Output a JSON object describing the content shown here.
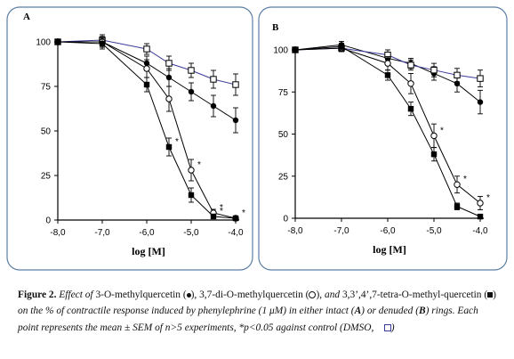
{
  "chart_data": [
    {
      "type": "line",
      "panel": "A",
      "xlabel": "log [M]",
      "ylabel": "",
      "xlim": [
        -8.0,
        -4.0
      ],
      "ylim": [
        0,
        100
      ],
      "xticks": [
        "-8,0",
        "-7,0",
        "-6,0",
        "-5,0",
        "-4,0"
      ],
      "yticks": [
        "0",
        "25",
        "50",
        "75",
        "100"
      ],
      "series": [
        {
          "marker": "filled-circle",
          "line_color": "#000000",
          "x": [
            -8.0,
            -7.0,
            -6.0,
            -5.5,
            -5.0,
            -4.5,
            -4.0
          ],
          "y": [
            100,
            100,
            88,
            80,
            72,
            64,
            56
          ],
          "err": [
            0,
            3,
            4,
            5,
            5,
            6,
            7
          ],
          "sig": []
        },
        {
          "marker": "open-square",
          "line_color": "#3a3a9a",
          "x": [
            -8.0,
            -7.0,
            -6.0,
            -5.5,
            -5.0,
            -4.5,
            -4.0
          ],
          "y": [
            100,
            101,
            96,
            88,
            84,
            79,
            76
          ],
          "err": [
            0,
            3,
            3,
            4,
            4,
            5,
            6
          ],
          "sig": []
        },
        {
          "marker": "open-circle",
          "line_color": "#000000",
          "x": [
            -8.0,
            -7.0,
            -6.0,
            -5.5,
            -5.0,
            -4.5,
            -4.0
          ],
          "y": [
            100,
            100,
            85,
            68,
            28,
            4,
            1
          ],
          "err": [
            0,
            3,
            5,
            7,
            6,
            2,
            1
          ],
          "sig": [
            false,
            false,
            false,
            false,
            true,
            true,
            true
          ]
        },
        {
          "marker": "filled-square",
          "line_color": "#000000",
          "x": [
            -8.0,
            -7.0,
            -6.0,
            -5.5,
            -5.0,
            -4.5,
            -4.0
          ],
          "y": [
            100,
            99,
            76,
            41,
            14,
            2,
            1
          ],
          "err": [
            0,
            3,
            4,
            5,
            4,
            1,
            1
          ],
          "sig": [
            false,
            false,
            false,
            true,
            false,
            true,
            false
          ]
        }
      ]
    },
    {
      "type": "line",
      "panel": "B",
      "xlabel": "log [M]",
      "ylabel": "",
      "xlim": [
        -8.0,
        -4.0
      ],
      "ylim": [
        0,
        100
      ],
      "xticks": [
        "-8,0",
        "-7,0",
        "-6,0",
        "-5,0",
        "-4,0"
      ],
      "yticks": [
        "0",
        "25",
        "50",
        "75",
        "100"
      ],
      "series": [
        {
          "marker": "filled-circle",
          "line_color": "#000000",
          "x": [
            -8.0,
            -7.0,
            -6.0,
            -5.5,
            -5.0,
            -4.5,
            -4.0
          ],
          "y": [
            100,
            103,
            95,
            92,
            86,
            80,
            69
          ],
          "err": [
            0,
            2,
            3,
            3,
            4,
            5,
            7
          ],
          "sig": []
        },
        {
          "marker": "open-square",
          "line_color": "#3a3a9a",
          "x": [
            -8.0,
            -7.0,
            -6.0,
            -5.5,
            -5.0,
            -4.5,
            -4.0
          ],
          "y": [
            100,
            101,
            97,
            91,
            88,
            85,
            83
          ],
          "err": [
            0,
            2,
            3,
            3,
            4,
            4,
            5
          ],
          "sig": []
        },
        {
          "marker": "open-circle",
          "line_color": "#000000",
          "x": [
            -8.0,
            -7.0,
            -6.0,
            -5.5,
            -5.0,
            -4.5,
            -4.0
          ],
          "y": [
            100,
            101,
            92,
            80,
            49,
            20,
            9
          ],
          "err": [
            0,
            2,
            4,
            6,
            7,
            5,
            4
          ],
          "sig": [
            false,
            false,
            false,
            false,
            true,
            true,
            true
          ]
        },
        {
          "marker": "filled-square",
          "line_color": "#000000",
          "x": [
            -8.0,
            -7.0,
            -6.0,
            -5.5,
            -5.0,
            -4.5,
            -4.0
          ],
          "y": [
            100,
            102,
            85,
            65,
            38,
            7,
            1
          ],
          "err": [
            0,
            2,
            3,
            4,
            4,
            2,
            1
          ],
          "sig": []
        }
      ]
    }
  ],
  "caption": {
    "figure_number": "Figure 2.",
    "p1": "Effect of",
    "c1": "3-O-methylquercetin (",
    "c1_end": "), 3,7-di-O-methylquercetin (",
    "c2_end": "),",
    "and": "and",
    "c3": "3,3’,4’,7-tetra-O-methyl-quercetin (",
    "c3_end": ")",
    "p2": "on the % of contractile response induced by phenylephrine (1 μM) in either intact (",
    "letter_a": "A",
    "p3": ") or denuded (",
    "letter_b": "B",
    "p4": ") rings. Each point represents the mean ± SEM of n>5 experiments,",
    "p5": "*p<0.05 against control (DMSO,",
    "p6": ")"
  }
}
